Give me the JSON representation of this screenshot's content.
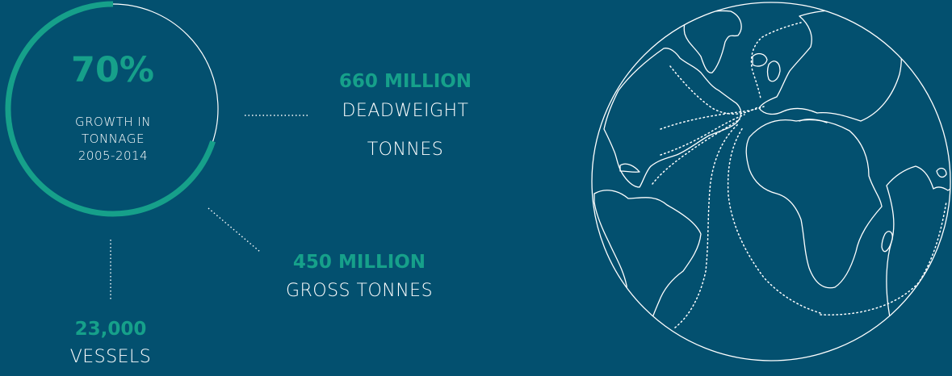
{
  "growth": {
    "value": "70%",
    "fraction": 0.7,
    "line1": "GROWTH IN",
    "line2": "TONNAGE",
    "line3": "2005-2014"
  },
  "deadweight": {
    "value": "660 MILLION",
    "line1": "DEADWEIGHT",
    "line2": "TONNES"
  },
  "gross": {
    "value": "450 MILLION",
    "line1": "GROSS TONNES"
  },
  "vessels": {
    "value": "23,000",
    "line1": "VESSELS"
  },
  "colors": {
    "background": "#03506f",
    "accent": "#16a08a",
    "line": "#ffffff"
  },
  "icons": {
    "globe": "globe-icon"
  }
}
